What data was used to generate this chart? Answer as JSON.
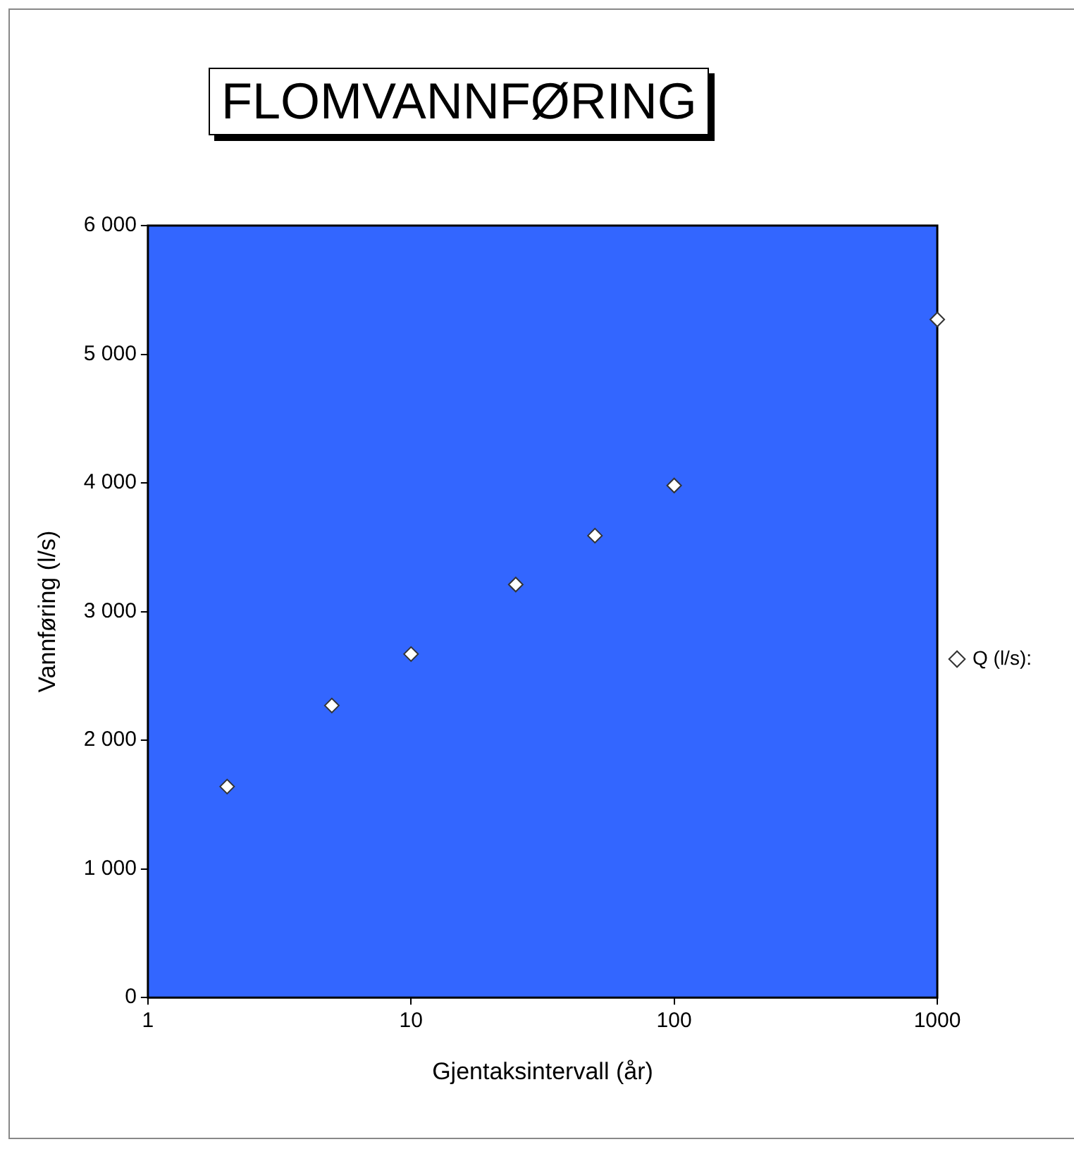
{
  "chart_data": {
    "type": "scatter",
    "title": "FLOMVANNFØRING",
    "xlabel": "Gjentaksintervall (år)",
    "ylabel": "Vannføring (l/s)",
    "log": "x",
    "xlim": [
      1,
      1000
    ],
    "xticks": [
      1,
      10,
      100,
      1000
    ],
    "ylim": [
      0,
      6000
    ],
    "yticks": [
      {
        "value": 0,
        "label": "0"
      },
      {
        "value": 1000,
        "label": "1 000"
      },
      {
        "value": 2000,
        "label": "2 000"
      },
      {
        "value": 3000,
        "label": "3 000"
      },
      {
        "value": 4000,
        "label": "4 000"
      },
      {
        "value": 5000,
        "label": "5 000"
      },
      {
        "value": 6000,
        "label": "6 000"
      }
    ],
    "grid": false,
    "legend": "right",
    "marker": "diamond",
    "series": [
      {
        "name": "Q (l/s):",
        "color": "#ffffff",
        "x": [
          2,
          5,
          10,
          25,
          50,
          100,
          1000
        ],
        "values": [
          1640,
          2270,
          2670,
          3210,
          3590,
          3980,
          5270
        ]
      }
    ]
  }
}
